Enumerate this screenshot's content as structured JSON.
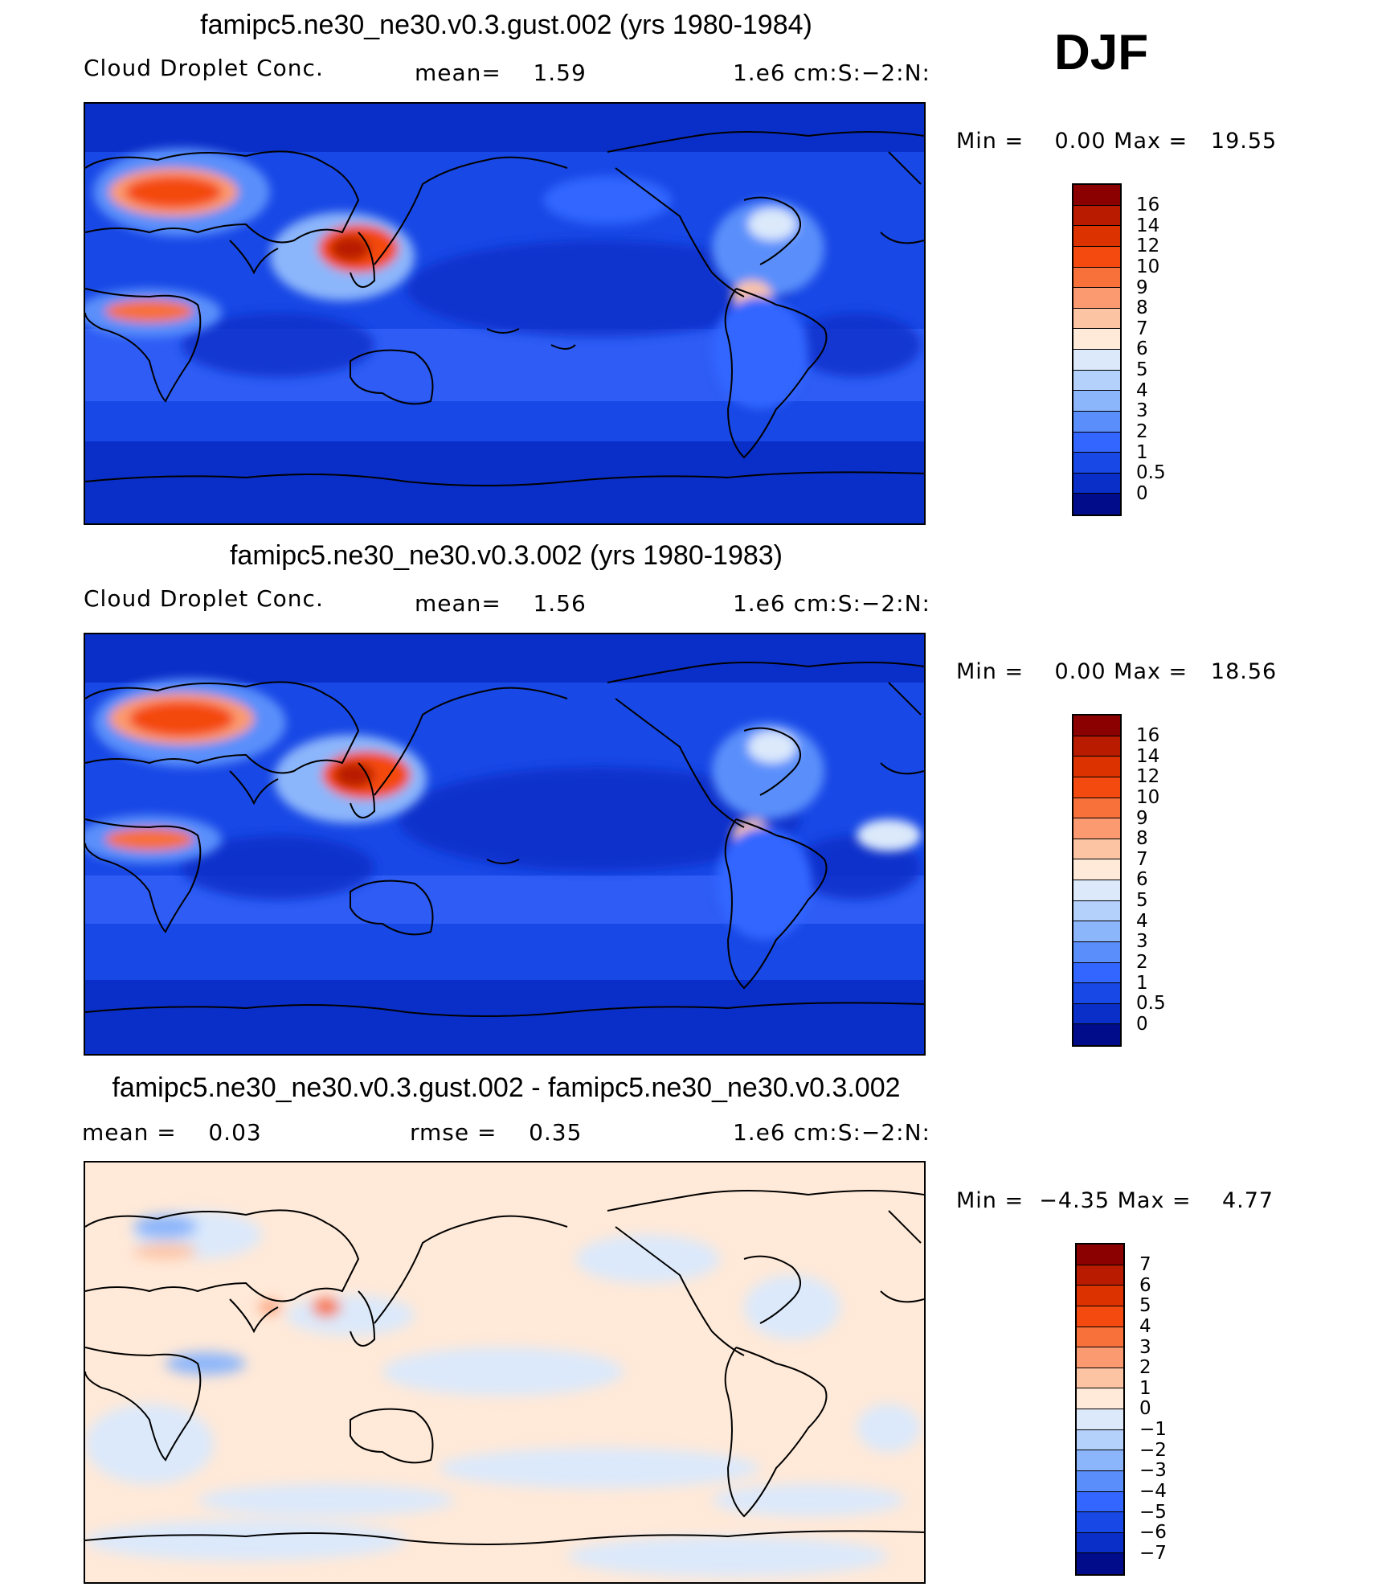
{
  "season": "DJF",
  "panels": [
    {
      "title": "famipc5.ne30_ne30.v0.3.gust.002 (yrs 1980-1984)",
      "left": "Cloud Droplet Conc.",
      "middle": "mean=    1.59",
      "right": "1.e6 cm:S:−2:N:",
      "minmax": "Min =    0.00 Max =   19.55",
      "map_type": "absolute"
    },
    {
      "title": "famipc5.ne30_ne30.v0.3.002 (yrs 1980-1983)",
      "left": "Cloud Droplet Conc.",
      "middle": "mean=    1.56",
      "right": "1.e6 cm:S:−2:N:",
      "minmax": "Min =    0.00 Max =   18.56",
      "map_type": "absolute"
    },
    {
      "title": "famipc5.ne30_ne30.v0.3.gust.002 - famipc5.ne30_ne30.v0.3.002",
      "left": "mean =    0.03",
      "middle": "rmse =    0.35",
      "right": "1.e6 cm:S:−2:N:",
      "minmax": "Min =  −4.35 Max =    4.77",
      "map_type": "difference"
    }
  ],
  "colorbar_abs": {
    "labels": [
      "16",
      "14",
      "12",
      "10",
      "9",
      "8",
      "7",
      "6",
      "5",
      "4",
      "3",
      "2",
      "1",
      "0.5",
      "0"
    ],
    "colors": [
      "#8b0000",
      "#b81b00",
      "#dc3200",
      "#f44a10",
      "#f8703a",
      "#fb9a70",
      "#fdc4a4",
      "#ffe9d8",
      "#dbe9fb",
      "#b3d1fb",
      "#8cb6fb",
      "#5a8ffb",
      "#3366ff",
      "#1848e6",
      "#0a2ec8",
      "#000c8a"
    ]
  },
  "colorbar_diff": {
    "labels": [
      "7",
      "6",
      "5",
      "4",
      "3",
      "2",
      "1",
      "0",
      "−1",
      "−2",
      "−3",
      "−4",
      "−5",
      "−6",
      "−7"
    ],
    "colors": [
      "#8b0000",
      "#b81b00",
      "#dc3200",
      "#f44a10",
      "#f8703a",
      "#fb9a70",
      "#fdc4a4",
      "#ffe9d8",
      "#dbe9fb",
      "#b3d1fb",
      "#8cb6fb",
      "#5a8ffb",
      "#3366ff",
      "#1848e6",
      "#0a2ec8",
      "#000c8a"
    ]
  }
}
